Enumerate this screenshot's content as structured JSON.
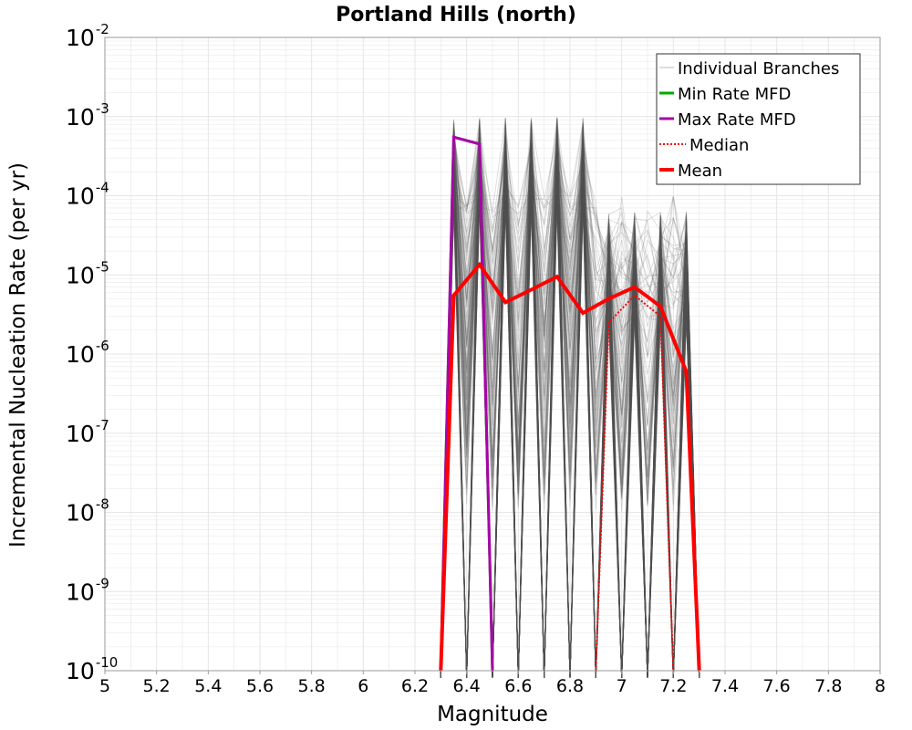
{
  "chart_data": {
    "type": "line",
    "title": "Portland Hills (north)",
    "xlabel": "Magnitude",
    "ylabel": "Incremental Nucleation Rate (per yr)",
    "x_scale": "linear",
    "y_scale": "log",
    "xlim": [
      5,
      8
    ],
    "ylim": [
      1e-10,
      0.01
    ],
    "grid": true,
    "legend_position": "top-right",
    "x_ticks": [
      "5",
      "5.2",
      "5.4",
      "5.6",
      "5.8",
      "6",
      "6.2",
      "6.4",
      "6.6",
      "6.8",
      "7",
      "7.2",
      "7.4",
      "7.6",
      "7.8",
      "8"
    ],
    "y_ticks": [
      {
        "base": "10",
        "exp": "-10"
      },
      {
        "base": "10",
        "exp": "-9"
      },
      {
        "base": "10",
        "exp": "-8"
      },
      {
        "base": "10",
        "exp": "-7"
      },
      {
        "base": "10",
        "exp": "-6"
      },
      {
        "base": "10",
        "exp": "-5"
      },
      {
        "base": "10",
        "exp": "-4"
      },
      {
        "base": "10",
        "exp": "-3"
      },
      {
        "base": "10",
        "exp": "-2"
      }
    ],
    "series": [
      {
        "name": "Individual Branches",
        "color": "#555555",
        "style": "thin",
        "x": [
          6.35,
          6.45,
          6.55,
          6.65,
          6.75,
          6.85,
          6.95,
          7.05,
          7.15,
          7.25
        ],
        "y": [
          8e-05,
          0.0001,
          0.0002,
          0.0002,
          0.0002,
          0.0001,
          3e-05,
          3e-05,
          2e-05,
          1e-05
        ]
      },
      {
        "name": "Min Rate MFD",
        "color": "#00aa00",
        "style": "solid",
        "x": [
          6.3,
          6.35,
          6.45,
          6.5
        ],
        "y": [
          1e-10,
          0.00055,
          0.00045,
          1e-10
        ]
      },
      {
        "name": "Max Rate MFD",
        "color": "#aa00aa",
        "style": "solid",
        "x": [
          6.3,
          6.35,
          6.45,
          6.5
        ],
        "y": [
          1e-10,
          0.00055,
          0.00045,
          1e-10
        ]
      },
      {
        "name": "Median",
        "color": "#ff0000",
        "style": "dotted",
        "x": [
          6.9,
          6.95,
          7.05,
          7.15,
          7.2
        ],
        "y": [
          1e-10,
          2.5e-06,
          5.5e-06,
          3e-06,
          1e-10
        ]
      },
      {
        "name": "Mean",
        "color": "#ff0000",
        "style": "thick",
        "x": [
          6.3,
          6.35,
          6.45,
          6.55,
          6.65,
          6.75,
          6.85,
          6.95,
          7.05,
          7.15,
          7.25,
          7.3
        ],
        "y": [
          1e-10,
          5.5e-06,
          1.35e-05,
          4.5e-06,
          6.5e-06,
          9.5e-06,
          3.3e-06,
          5e-06,
          7e-06,
          4e-06,
          6e-07,
          1e-10
        ]
      }
    ]
  },
  "colors": {
    "background": "#ffffff",
    "grid": "#e6e6e6",
    "branches": "#555555"
  }
}
